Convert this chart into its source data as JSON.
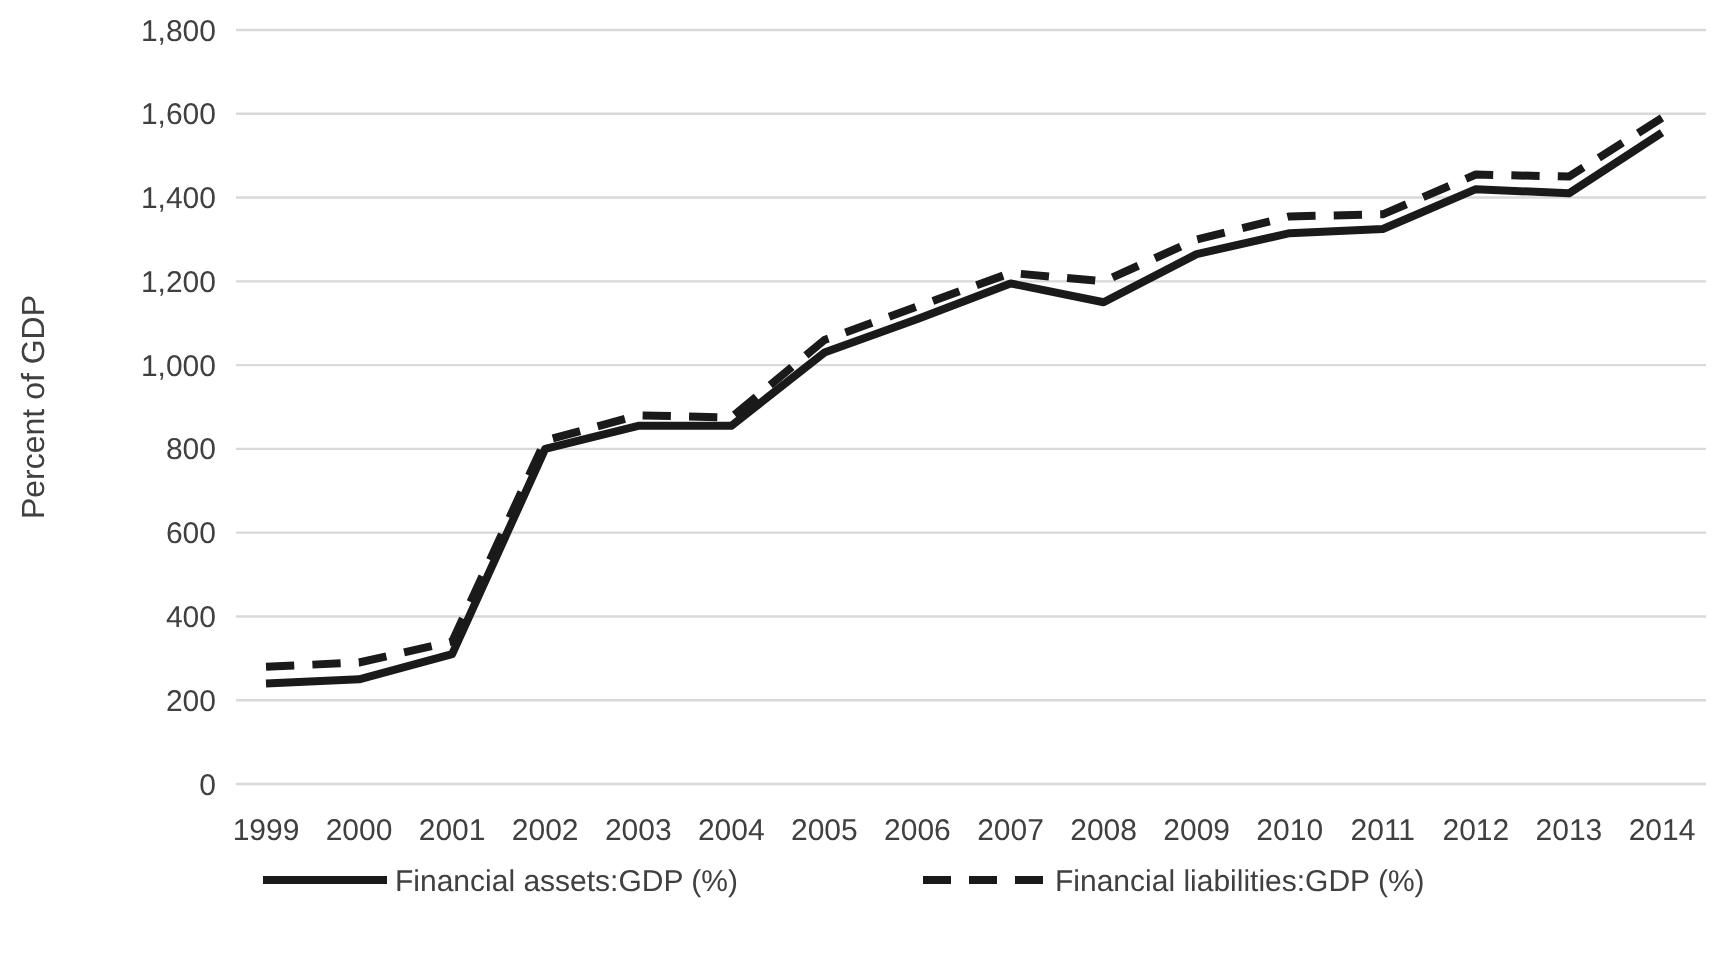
{
  "chart_data": {
    "type": "line",
    "ylabel": "Percent of GDP",
    "categories": [
      "1999",
      "2000",
      "2001",
      "2002",
      "2003",
      "2004",
      "2005",
      "2006",
      "2007",
      "2008",
      "2009",
      "2010",
      "2011",
      "2012",
      "2013",
      "2014"
    ],
    "ylim": [
      0,
      1800
    ],
    "yticks": [
      0,
      {
        "value": 200,
        "label": "200"
      },
      {
        "value": 400,
        "label": "400"
      },
      {
        "value": 600,
        "label": "600"
      },
      {
        "value": 800,
        "label": "800"
      },
      {
        "value": 1000,
        "label": "1,000"
      },
      {
        "value": 1200,
        "label": "1,200"
      },
      {
        "value": 1400,
        "label": "1,400"
      },
      {
        "value": 1600,
        "label": "1,600"
      },
      {
        "value": 1800,
        "label": "1,800"
      }
    ],
    "grid": "y",
    "legend": "bottom",
    "series": [
      {
        "name": "Financial assets:GDP (%)",
        "color": "#1a1a1a",
        "line_style": "solid",
        "values": [
          240,
          250,
          310,
          800,
          855,
          855,
          1030,
          1110,
          1195,
          1150,
          1265,
          1315,
          1325,
          1420,
          1410,
          1555
        ]
      },
      {
        "name": "Financial liabilities:GDP (%)",
        "color": "#1a1a1a",
        "line_style": "dashed",
        "values": [
          280,
          290,
          340,
          820,
          880,
          875,
          1060,
          1140,
          1220,
          1200,
          1300,
          1355,
          1360,
          1455,
          1450,
          1590
        ]
      }
    ]
  }
}
